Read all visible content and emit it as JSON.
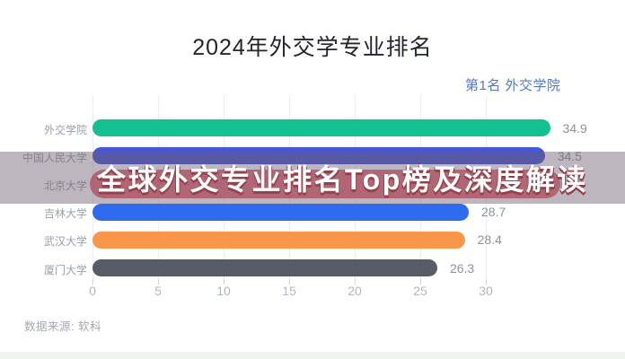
{
  "header": {
    "title": "2024年外交学专业排名",
    "legend": "第1名 外交学院"
  },
  "overlay": {
    "headline": "全球外交专业排名Top榜及深度解读",
    "pill_color": "#ac505f",
    "band_color": "#6c5e70"
  },
  "footer": {
    "source": "数据来源: 软科"
  },
  "chart_data": {
    "type": "bar",
    "orientation": "horizontal",
    "title": "2024年外交学专业排名",
    "categories": [
      "外交学院",
      "中国人民大学",
      "北京大学",
      "吉林大学",
      "武汉大学",
      "厦门大学"
    ],
    "values": [
      34.9,
      34.5,
      null,
      28.7,
      28.4,
      26.3
    ],
    "value_labels": [
      "34.9",
      "34.5",
      null,
      "28.7",
      "28.4",
      "26.3"
    ],
    "bar_colors": [
      "#13c08f",
      "#4557d5",
      null,
      "#2e6bee",
      "#f9964a",
      "#585c66"
    ],
    "x_ticks": [
      "0",
      "5",
      "10",
      "15",
      "20",
      "25",
      "30"
    ],
    "xlim": [
      0,
      35
    ],
    "grid": "vertical",
    "legend_position": "top-right",
    "hidden_note": "third row bar concealed by overlay banner"
  }
}
